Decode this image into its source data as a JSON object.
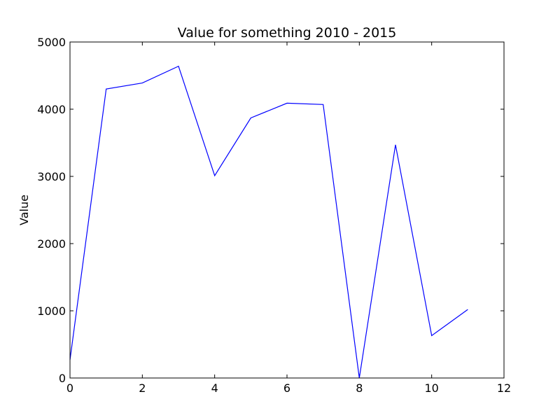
{
  "chart_data": {
    "type": "line",
    "title": "Value for something 2010 - 2015",
    "xlabel": "",
    "ylabel": "Value",
    "xlim": [
      0,
      12
    ],
    "ylim": [
      0,
      5000
    ],
    "x_ticks": [
      0,
      2,
      4,
      6,
      8,
      10,
      12
    ],
    "y_ticks": [
      0,
      1000,
      2000,
      3000,
      4000,
      5000
    ],
    "x_tick_labels": [
      "0",
      "2",
      "4",
      "6",
      "8",
      "10",
      "12"
    ],
    "y_tick_labels": [
      "0",
      "1000",
      "2000",
      "3000",
      "4000",
      "5000"
    ],
    "grid": false,
    "legend": "none",
    "line_color": "#0000ff",
    "series": [
      {
        "x": [
          0,
          1,
          2,
          3,
          4,
          5,
          6,
          7,
          8,
          9,
          10,
          11
        ],
        "values": [
          270,
          4300,
          4390,
          4640,
          3010,
          3870,
          4090,
          4070,
          0,
          3470,
          630,
          1020
        ]
      }
    ]
  }
}
